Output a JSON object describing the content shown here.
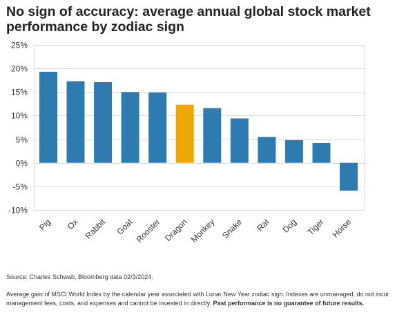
{
  "title": "No sign of accuracy: average annual global stock market performance by zodiac sign",
  "source": "Source: Charles Schwab, Bloomberg data 02/3/2024.",
  "footnote": {
    "text": "Average gain of MSCI World Index by the calendar year associated with Lunar New Year zodiac sign. Indexes are unmanaged, do not incur management fees, costs, and expenses and cannot be invested in directly. ",
    "emphasis": "Past performance is no guarantee of future results."
  },
  "colors": {
    "bar": "#2e7bb0",
    "highlight": "#f0a800",
    "grid": "#d9d9d9",
    "axis_text": "#333333"
  },
  "chart_data": {
    "type": "bar",
    "categories": [
      "Pig",
      "Ox",
      "Rabbit",
      "Goat",
      "Rooster",
      "Dragon",
      "Monkey",
      "Snake",
      "Rat",
      "Dog",
      "Tiger",
      "Horse"
    ],
    "values": [
      19.3,
      17.3,
      17.1,
      15.0,
      14.9,
      12.3,
      11.6,
      9.4,
      5.5,
      4.8,
      4.2,
      -5.9
    ],
    "highlight": "Dragon",
    "title": "",
    "xlabel": "",
    "ylabel": "",
    "ylim": [
      -10,
      25
    ],
    "yticks": [
      -10,
      -5,
      0,
      5,
      10,
      15,
      20,
      25
    ],
    "ytick_labels": [
      "-10%",
      "-5%",
      "0%",
      "5%",
      "10%",
      "15%",
      "20%",
      "25%"
    ],
    "grid": true,
    "legend": "none"
  }
}
